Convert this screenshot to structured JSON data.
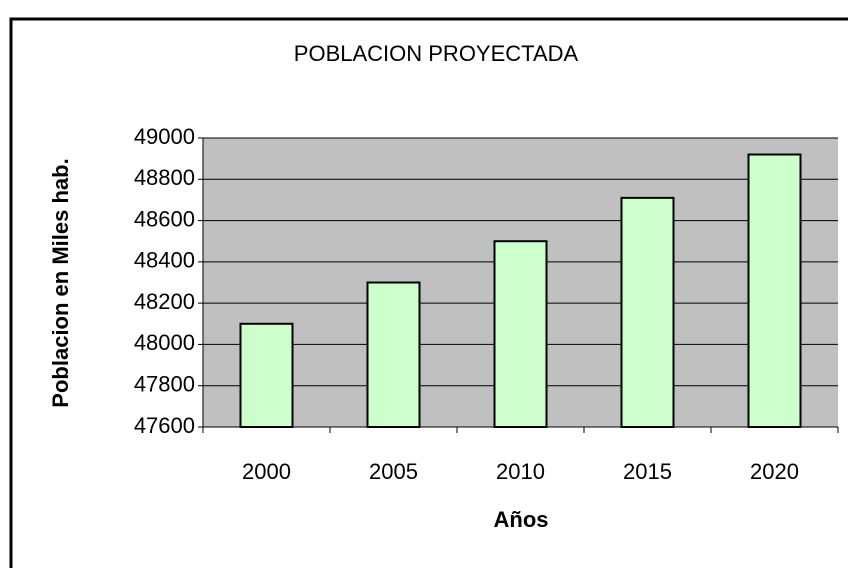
{
  "chart_data": {
    "type": "bar",
    "title": "POBLACION PROYECTADA",
    "x_label": "Años",
    "y_label": "Poblacion en Miles hab.",
    "categories": [
      "2000",
      "2005",
      "2010",
      "2015",
      "2020"
    ],
    "values": [
      48100,
      48300,
      48500,
      48710,
      48920
    ],
    "color": "#ccffcc",
    "ylim": [
      47600,
      49000
    ],
    "yticks": [
      47600,
      47800,
      48000,
      48200,
      48400,
      48600,
      48800,
      49000
    ],
    "grid": true
  }
}
